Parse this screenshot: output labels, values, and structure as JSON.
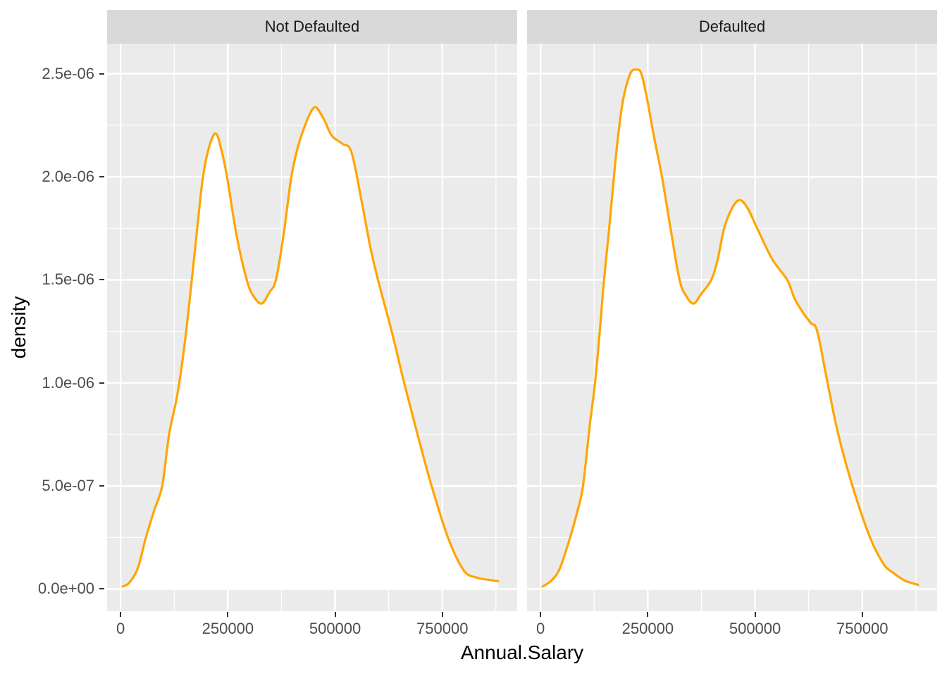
{
  "chart_data": {
    "type": "line",
    "subtype": "faceted-density",
    "title": "",
    "xlabel": "Annual.Salary",
    "ylabel": "density",
    "legend": "none",
    "grid": "on",
    "density_unit": "1e-06 (point y values are density × 1e-06)",
    "xlim": [
      -31500,
      924500
    ],
    "ylim": [
      -0.108,
      2.646
    ],
    "x_ticks": {
      "values": [
        0,
        250000,
        500000,
        750000
      ],
      "labels": [
        "0",
        "250000",
        "500000",
        "750000"
      ],
      "minor": [
        125000,
        375000,
        625000,
        875000
      ]
    },
    "y_ticks": {
      "values": [
        0,
        0.5,
        1.0,
        1.5,
        2.0,
        2.5
      ],
      "labels": [
        "0.0e+00",
        "5.0e-07",
        "1.0e-06",
        "1.5e-06",
        "2.0e-06",
        "2.5e-06"
      ],
      "minor": [
        0.25,
        0.75,
        1.25,
        1.75,
        2.25
      ]
    },
    "facets": [
      {
        "label": "Not Defaulted",
        "peaks": [
          [
            222000,
            2.21
          ],
          [
            457000,
            2.335
          ]
        ],
        "valley": [
          329000,
          1.385
        ],
        "points": [
          [
            5000,
            0.012
          ],
          [
            20000,
            0.03
          ],
          [
            40000,
            0.1
          ],
          [
            59000,
            0.25
          ],
          [
            78000,
            0.38
          ],
          [
            97000,
            0.5
          ],
          [
            113000,
            0.75
          ],
          [
            133000,
            0.95
          ],
          [
            150000,
            1.2
          ],
          [
            166000,
            1.5
          ],
          [
            180000,
            1.78
          ],
          [
            192000,
            2.0
          ],
          [
            207000,
            2.15
          ],
          [
            222000,
            2.21
          ],
          [
            235000,
            2.13
          ],
          [
            248000,
            2.0
          ],
          [
            270000,
            1.72
          ],
          [
            294000,
            1.5
          ],
          [
            310000,
            1.42
          ],
          [
            329000,
            1.385
          ],
          [
            347000,
            1.44
          ],
          [
            362000,
            1.5
          ],
          [
            380000,
            1.72
          ],
          [
            398000,
            2.0
          ],
          [
            414000,
            2.15
          ],
          [
            430000,
            2.25
          ],
          [
            445000,
            2.32
          ],
          [
            457000,
            2.335
          ],
          [
            476000,
            2.27
          ],
          [
            492000,
            2.2
          ],
          [
            517000,
            2.16
          ],
          [
            538000,
            2.12
          ],
          [
            562000,
            1.88
          ],
          [
            582000,
            1.66
          ],
          [
            600000,
            1.5
          ],
          [
            632000,
            1.25
          ],
          [
            661000,
            1.0
          ],
          [
            692000,
            0.75
          ],
          [
            725000,
            0.5
          ],
          [
            763000,
            0.25
          ],
          [
            800000,
            0.09
          ],
          [
            830000,
            0.055
          ],
          [
            855000,
            0.045
          ],
          [
            880000,
            0.038
          ]
        ]
      },
      {
        "label": "Defaulted",
        "peaks": [
          [
            222000,
            2.52
          ],
          [
            464000,
            1.887
          ]
        ],
        "valley": [
          357000,
          1.385
        ],
        "points": [
          [
            5000,
            0.012
          ],
          [
            25000,
            0.04
          ],
          [
            45000,
            0.1
          ],
          [
            69000,
            0.25
          ],
          [
            85000,
            0.37
          ],
          [
            99000,
            0.5
          ],
          [
            115000,
            0.8
          ],
          [
            127000,
            1.0
          ],
          [
            138000,
            1.25
          ],
          [
            148000,
            1.5
          ],
          [
            160000,
            1.75
          ],
          [
            171000,
            2.0
          ],
          [
            182000,
            2.22
          ],
          [
            193000,
            2.38
          ],
          [
            209000,
            2.5
          ],
          [
            222000,
            2.52
          ],
          [
            235000,
            2.5
          ],
          [
            250000,
            2.36
          ],
          [
            263000,
            2.21
          ],
          [
            283000,
            2.0
          ],
          [
            303000,
            1.75
          ],
          [
            324000,
            1.5
          ],
          [
            340000,
            1.42
          ],
          [
            357000,
            1.385
          ],
          [
            374000,
            1.43
          ],
          [
            398000,
            1.5
          ],
          [
            413000,
            1.6
          ],
          [
            428000,
            1.75
          ],
          [
            447000,
            1.85
          ],
          [
            464000,
            1.887
          ],
          [
            482000,
            1.85
          ],
          [
            505000,
            1.75
          ],
          [
            540000,
            1.6
          ],
          [
            575000,
            1.5
          ],
          [
            592000,
            1.41
          ],
          [
            612000,
            1.34
          ],
          [
            630000,
            1.29
          ],
          [
            645000,
            1.25
          ],
          [
            669000,
            1.0
          ],
          [
            694000,
            0.75
          ],
          [
            727000,
            0.5
          ],
          [
            768000,
            0.25
          ],
          [
            800000,
            0.12
          ],
          [
            821000,
            0.08
          ],
          [
            850000,
            0.04
          ],
          [
            880000,
            0.02
          ]
        ]
      }
    ],
    "colors": {
      "line": "#FFA500",
      "area_fill": "#FFFFFF",
      "panel_bg": "#EBEBEB",
      "strip_bg": "#D9D9D9",
      "grid": "#FFFFFF",
      "tick_mark": "#333333",
      "tick_label": "#4D4D4D",
      "strip_text": "#1A1A1A",
      "title_text": "#000000",
      "figure_bg": "#FFFFFF"
    }
  }
}
